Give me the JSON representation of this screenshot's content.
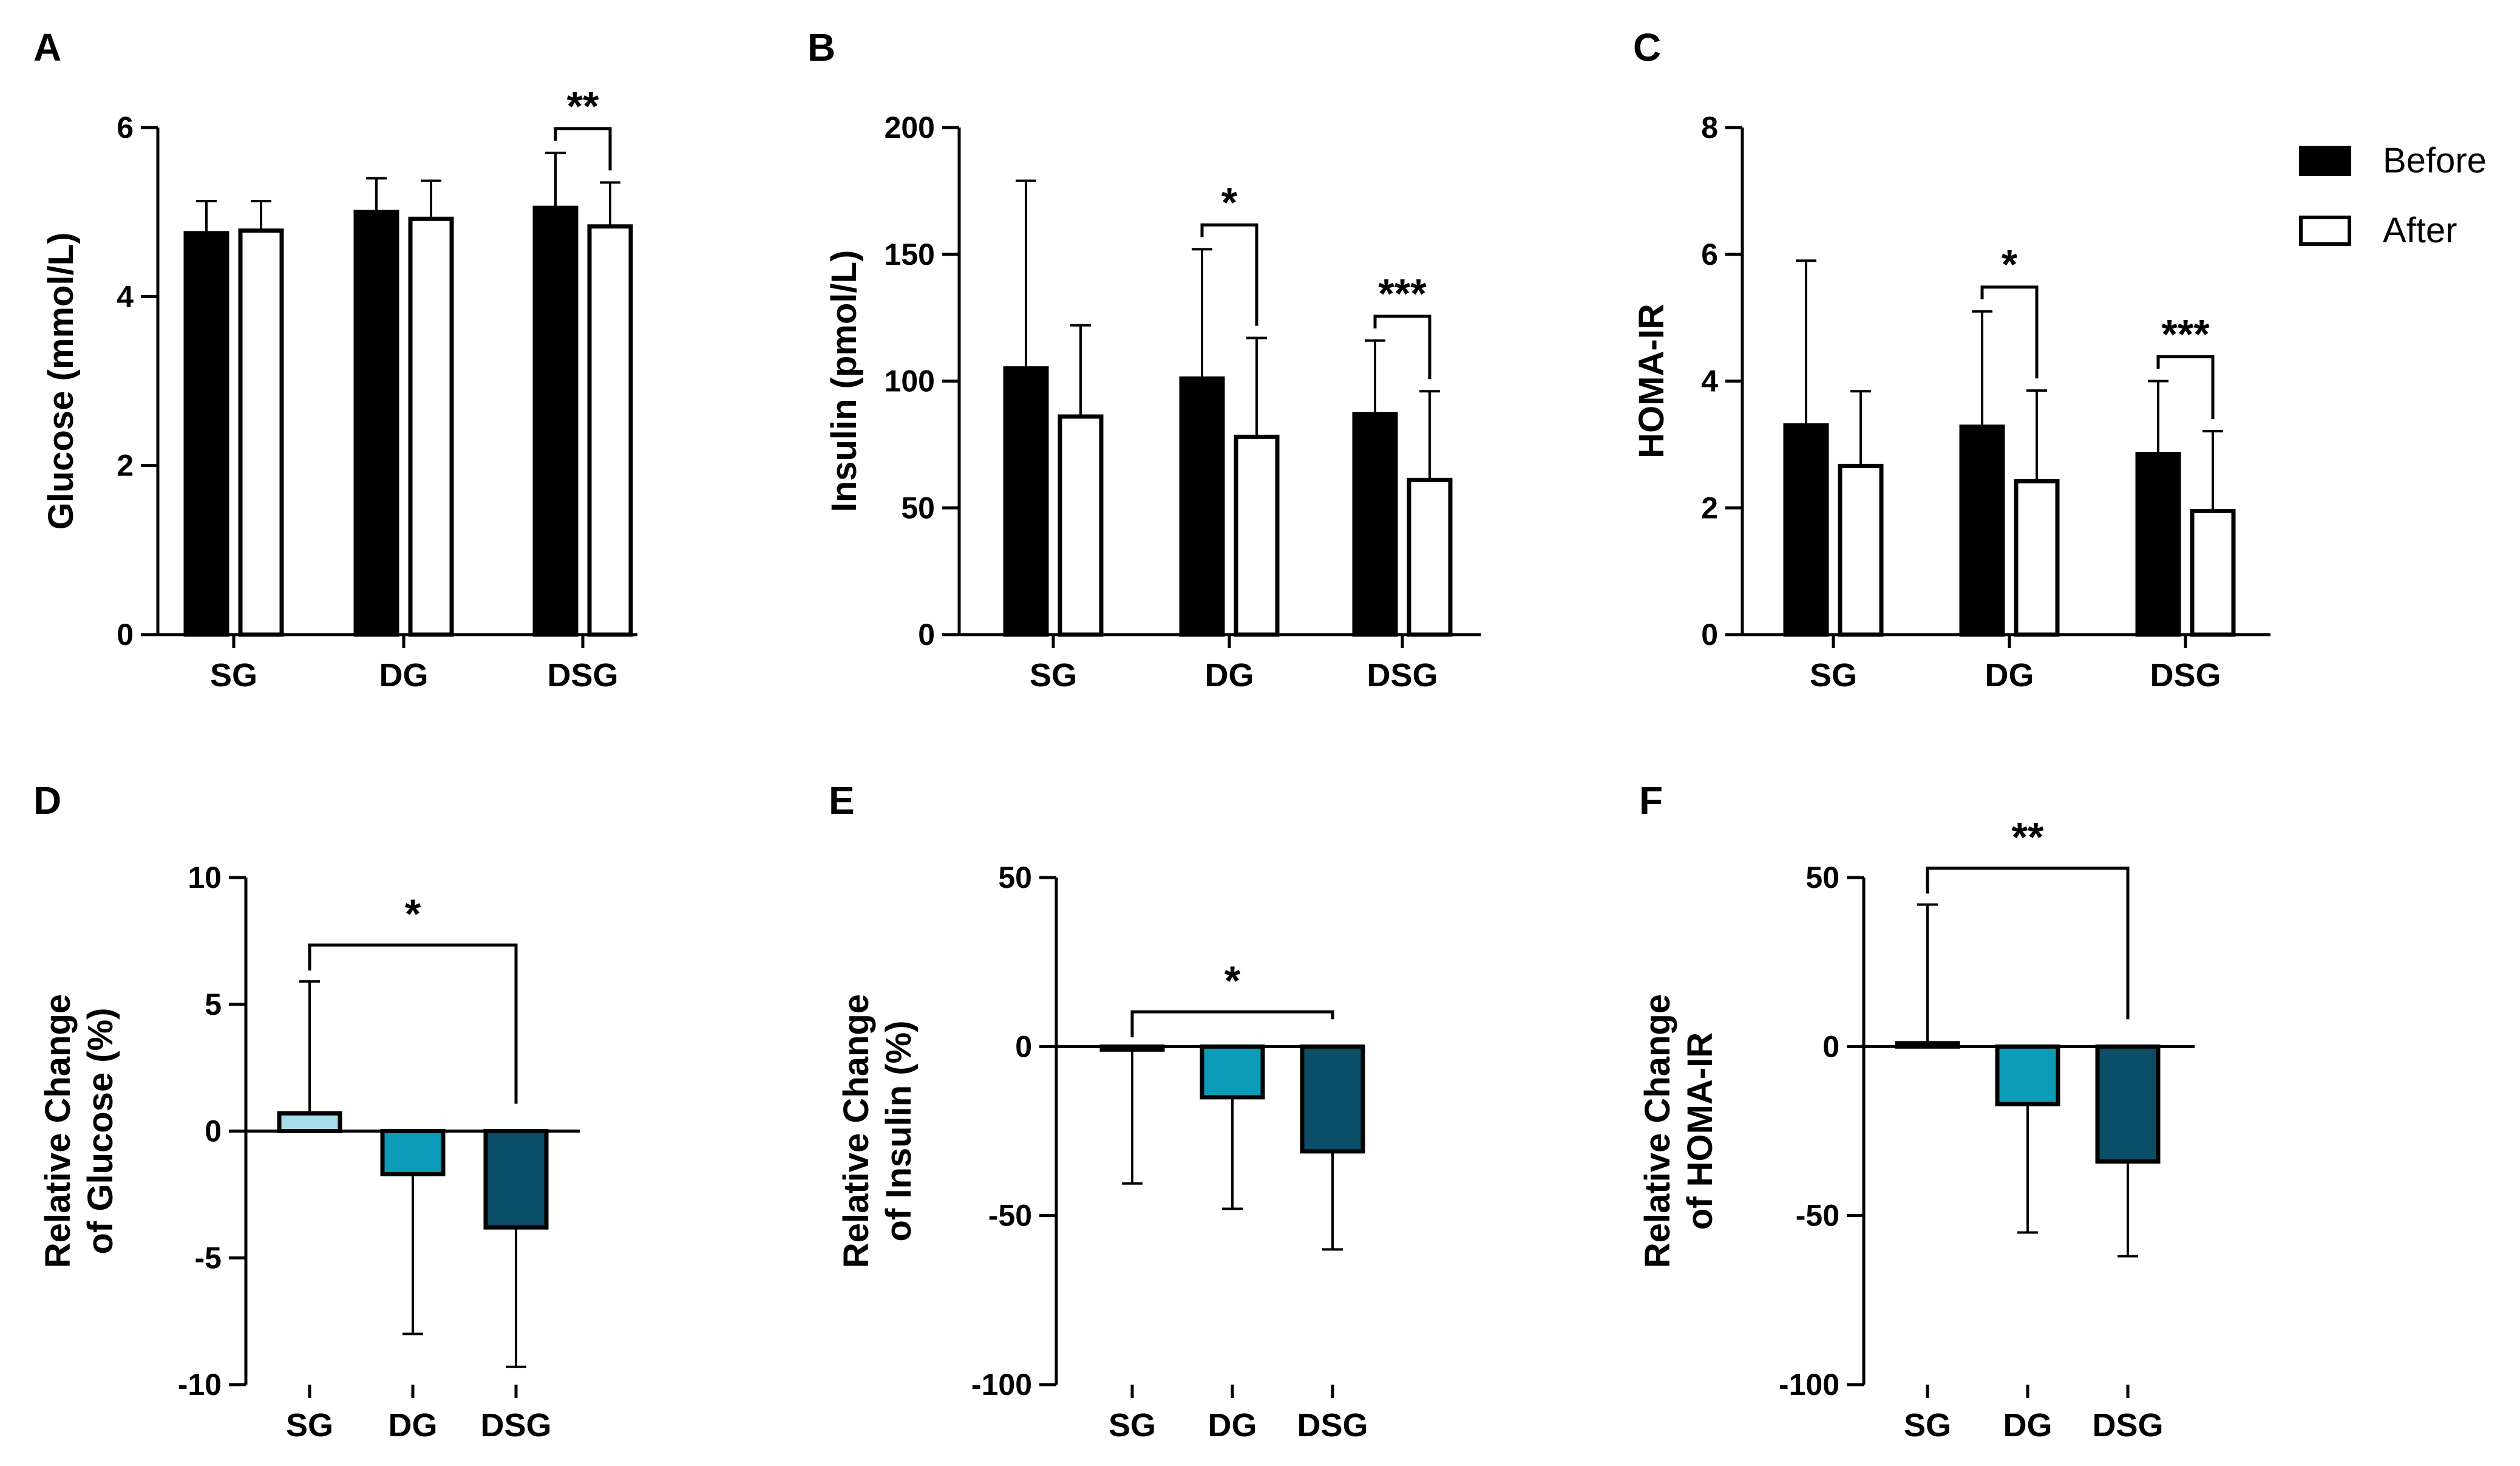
{
  "legend": {
    "before_label": "Before",
    "after_label": "After",
    "before_color": "#000000",
    "after_color": "#ffffff"
  },
  "chart_data": [
    {
      "panel": "A",
      "type": "bar",
      "categories": [
        "SG",
        "DG",
        "DSG"
      ],
      "ylabel": "Glucose (mmol/L)",
      "ylim": [
        0,
        6
      ],
      "ticks": [
        0,
        2,
        4,
        6
      ],
      "series": [
        {
          "name": "Before",
          "color": "#000000",
          "values": [
            4.75,
            5.0,
            5.05
          ],
          "errors": [
            0.38,
            0.4,
            0.65
          ]
        },
        {
          "name": "After",
          "color": "#ffffff",
          "values": [
            4.78,
            4.92,
            4.83
          ],
          "errors": [
            0.35,
            0.45,
            0.52
          ]
        }
      ],
      "annotations": [
        {
          "text": "**",
          "category": 2,
          "type": "pair"
        }
      ]
    },
    {
      "panel": "B",
      "type": "bar",
      "categories": [
        "SG",
        "DG",
        "DSG"
      ],
      "ylabel": "Insulin (pmol/L)",
      "ylim": [
        0,
        200
      ],
      "ticks": [
        0,
        50,
        100,
        150,
        200
      ],
      "series": [
        {
          "name": "Before",
          "color": "#000000",
          "values": [
            105,
            101,
            87
          ],
          "errors": [
            74,
            51,
            29
          ]
        },
        {
          "name": "After",
          "color": "#ffffff",
          "values": [
            86,
            78,
            61
          ],
          "errors": [
            36,
            39,
            35
          ]
        }
      ],
      "annotations": [
        {
          "text": "*",
          "category": 1,
          "type": "pair"
        },
        {
          "text": "***",
          "category": 2,
          "type": "pair"
        }
      ]
    },
    {
      "panel": "C",
      "type": "bar",
      "categories": [
        "SG",
        "DG",
        "DSG"
      ],
      "ylabel": "HOMA-IR",
      "ylim": [
        0,
        8
      ],
      "ticks": [
        0,
        2,
        4,
        6,
        8
      ],
      "series": [
        {
          "name": "Before",
          "color": "#000000",
          "values": [
            3.3,
            3.28,
            2.85
          ],
          "errors": [
            2.6,
            1.82,
            1.15
          ]
        },
        {
          "name": "After",
          "color": "#ffffff",
          "values": [
            2.66,
            2.42,
            1.95
          ],
          "errors": [
            1.18,
            1.43,
            1.26
          ]
        }
      ],
      "annotations": [
        {
          "text": "*",
          "category": 1,
          "type": "pair"
        },
        {
          "text": "***",
          "category": 2,
          "type": "pair"
        }
      ]
    },
    {
      "panel": "D",
      "type": "bar",
      "categories": [
        "SG",
        "DG",
        "DSG"
      ],
      "ylabel": [
        "Relative Change",
        "of Glucose (%)"
      ],
      "ylim": [
        -10,
        10
      ],
      "ticks": [
        -10,
        -5,
        0,
        5,
        10
      ],
      "colors": [
        "#a7dcea",
        "#0c9cb8",
        "#0a4f67"
      ],
      "values": [
        0.7,
        -1.7,
        -3.8
      ],
      "errors": [
        5.2,
        6.3,
        5.5
      ],
      "annotations": [
        {
          "text": "*",
          "from": 0,
          "to": 2,
          "type": "bracket"
        }
      ]
    },
    {
      "panel": "E",
      "type": "bar",
      "categories": [
        "SG",
        "DG",
        "DSG"
      ],
      "ylabel": [
        "Relative Change",
        "of Insulin (%)"
      ],
      "ylim": [
        -100,
        50
      ],
      "ticks": [
        -100,
        -50,
        0,
        50
      ],
      "colors": [
        "#a7dcea",
        "#0c9cb8",
        "#0a4f67"
      ],
      "values": [
        -0.5,
        -15,
        -31
      ],
      "errors": [
        40,
        33,
        29
      ],
      "annotations": [
        {
          "text": "*",
          "from": 0,
          "to": 2,
          "type": "bracket"
        }
      ]
    },
    {
      "panel": "F",
      "type": "bar",
      "categories": [
        "SG",
        "DG",
        "DSG"
      ],
      "ylabel": [
        "Relative Change",
        "of HOMA-IR"
      ],
      "ylim": [
        -100,
        50
      ],
      "ticks": [
        -100,
        -50,
        0,
        50
      ],
      "colors": [
        "#a7dcea",
        "#0c9cb8",
        "#0a4f67"
      ],
      "values": [
        1,
        -17,
        -34
      ],
      "errors": [
        41,
        38,
        28
      ],
      "annotations": [
        {
          "text": "**",
          "from": 0,
          "to": 2,
          "type": "bracket"
        }
      ]
    }
  ]
}
